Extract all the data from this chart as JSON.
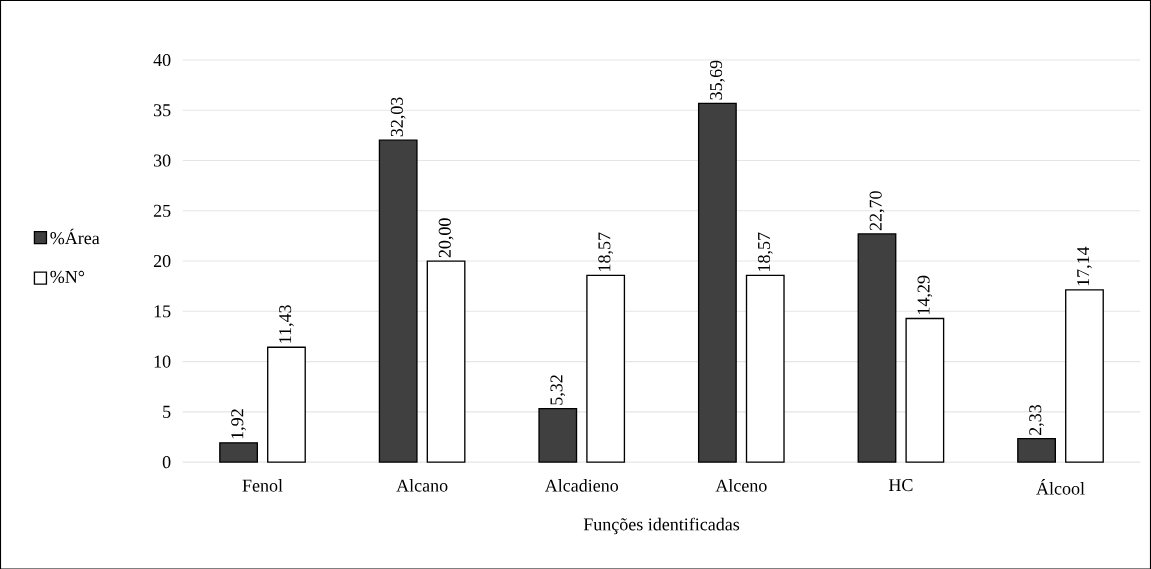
{
  "chart_data": {
    "type": "bar",
    "xlabel": "Funções identificadas",
    "categories": [
      "Fenol",
      "Alcano",
      "Alcadieno",
      "Alceno",
      "HC",
      "Álcool"
    ],
    "series": [
      {
        "name": "%Área",
        "color": "#404040",
        "values": [
          1.92,
          32.03,
          5.32,
          35.69,
          22.7,
          2.33
        ],
        "value_labels": [
          "1,92",
          "32,03",
          "5,32",
          "35,69",
          "22,70",
          "2,33"
        ]
      },
      {
        "name": "%N°",
        "color": "#ffffff",
        "values": [
          11.43,
          20.0,
          18.57,
          18.57,
          14.29,
          17.14
        ],
        "value_labels": [
          "11,43",
          "20,00",
          "18,57",
          "18,57",
          "14,29",
          "17,14"
        ]
      }
    ],
    "ylim": [
      0,
      40
    ],
    "yticks": [
      0,
      5,
      10,
      15,
      20,
      25,
      30,
      35,
      40
    ],
    "grid": "y",
    "legend": "left"
  }
}
